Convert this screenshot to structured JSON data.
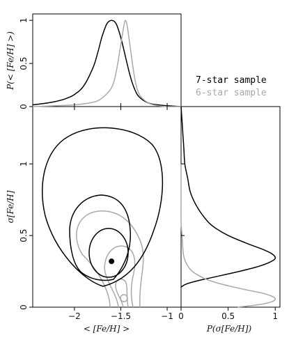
{
  "chart_data": [
    {
      "type": "line",
      "panel": "top-marginal",
      "ylabel": "P(< [Fe/H] >)",
      "xlim": [
        -2.45,
        -0.85
      ],
      "ylim": [
        0,
        1.05
      ],
      "yticks": [
        "0",
        "0.5",
        "1"
      ],
      "series": [
        {
          "name": "7-star sample",
          "color": "#000000",
          "peak_x": -1.6,
          "x": [
            -2.45,
            -2.3,
            -2.2,
            -2.1,
            -2.0,
            -1.9,
            -1.8,
            -1.75,
            -1.7,
            -1.65,
            -1.6,
            -1.55,
            -1.5,
            -1.45,
            -1.4,
            -1.35,
            -1.3,
            -1.2,
            -1.1,
            -1.0,
            -0.85
          ],
          "y": [
            0.02,
            0.04,
            0.06,
            0.09,
            0.14,
            0.24,
            0.45,
            0.62,
            0.82,
            0.96,
            1.0,
            0.96,
            0.8,
            0.58,
            0.36,
            0.2,
            0.11,
            0.04,
            0.02,
            0.01,
            0.0
          ]
        },
        {
          "name": "6-star sample",
          "color": "#a9a9a9",
          "peak_x": -1.45,
          "x": [
            -2.45,
            -2.2,
            -2.0,
            -1.8,
            -1.7,
            -1.6,
            -1.55,
            -1.5,
            -1.47,
            -1.45,
            -1.43,
            -1.4,
            -1.35,
            -1.3,
            -1.2,
            -1.1,
            -1.0,
            -0.85
          ],
          "y": [
            0.0,
            0.01,
            0.02,
            0.05,
            0.1,
            0.22,
            0.4,
            0.72,
            0.92,
            1.0,
            0.93,
            0.7,
            0.33,
            0.14,
            0.04,
            0.01,
            0.0,
            0.0
          ]
        }
      ]
    },
    {
      "type": "contour",
      "panel": "main",
      "xlabel": "< [Fe/H] >",
      "ylabel": "σ[Fe/H]",
      "xlim": [
        -2.45,
        -0.85
      ],
      "ylim": [
        0,
        1.4
      ],
      "xticks": [
        "−2",
        "−1.5",
        "−1"
      ],
      "yticks": [
        "0",
        "0.5",
        "1"
      ],
      "best_fit_7star": {
        "x": -1.6,
        "y": 0.32
      },
      "best_fit_6star": {
        "x": -1.44,
        "y": 0.06
      }
    },
    {
      "type": "line",
      "panel": "right-marginal",
      "xlabel": "P(σ[Fe/H])",
      "xlim": [
        0,
        1.05
      ],
      "xticks": [
        "0",
        "0.5",
        "1"
      ],
      "series": [
        {
          "name": "7-star sample",
          "color": "#000000",
          "sigma": [
            0.14,
            0.16,
            0.18,
            0.2,
            0.22,
            0.25,
            0.28,
            0.31,
            0.34,
            0.37,
            0.4,
            0.45,
            0.5,
            0.55,
            0.6,
            0.7,
            0.8,
            0.9,
            1.0,
            1.1,
            1.2,
            1.3,
            1.4
          ],
          "p": [
            0.0,
            0.05,
            0.15,
            0.28,
            0.42,
            0.62,
            0.8,
            0.93,
            1.0,
            0.97,
            0.88,
            0.68,
            0.5,
            0.37,
            0.28,
            0.17,
            0.1,
            0.07,
            0.04,
            0.03,
            0.02,
            0.01,
            0.0
          ]
        },
        {
          "name": "6-star sample",
          "color": "#a9a9a9",
          "sigma": [
            0.0,
            0.02,
            0.04,
            0.06,
            0.08,
            0.1,
            0.12,
            0.14,
            0.17,
            0.2,
            0.25,
            0.3,
            0.35,
            0.4,
            0.5,
            0.6,
            0.8,
            1.0
          ],
          "p": [
            0.6,
            0.85,
            0.97,
            1.0,
            0.95,
            0.85,
            0.7,
            0.56,
            0.38,
            0.25,
            0.12,
            0.06,
            0.03,
            0.02,
            0.01,
            0.0,
            0.0,
            0.0
          ]
        }
      ]
    }
  ],
  "legend": {
    "entries": [
      {
        "label": "7-star sample",
        "color": "#000000"
      },
      {
        "label": "6-star sample",
        "color": "#a9a9a9"
      }
    ]
  }
}
